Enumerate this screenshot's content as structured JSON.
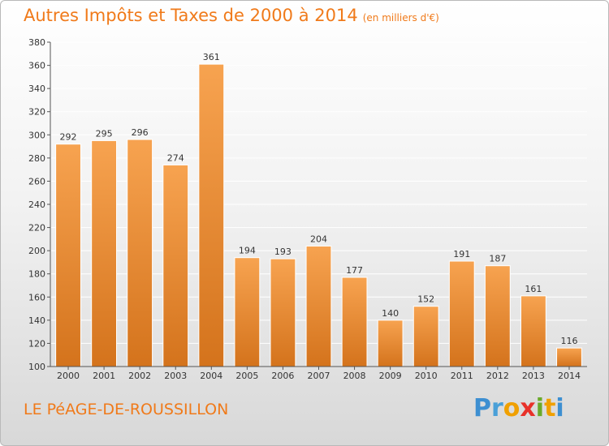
{
  "header": {
    "title": "Autres Impôts et Taxes de 2000 à 2014",
    "unit": "(en milliers d'€)"
  },
  "footer": {
    "commune": "LE PéAGE-DE-ROUSSILLON",
    "logo": [
      "P",
      "r",
      "o",
      "x",
      "i",
      "t",
      "i"
    ]
  },
  "colors": {
    "accent": "#f07a1a",
    "bar_top": "#f7a350",
    "bar_bottom": "#d4731c",
    "grid": "#ffffff",
    "axis_text": "#333333"
  },
  "chart_data": {
    "type": "bar",
    "title": "Autres Impôts et Taxes de 2000 à 2014",
    "subtitle": "(en milliers d'€)",
    "xlabel": "",
    "ylabel": "",
    "categories": [
      "2000",
      "2001",
      "2002",
      "2003",
      "2004",
      "2005",
      "2006",
      "2007",
      "2008",
      "2009",
      "2010",
      "2011",
      "2012",
      "2013",
      "2014"
    ],
    "values": [
      292,
      295,
      296,
      274,
      361,
      194,
      193,
      204,
      177,
      140,
      152,
      191,
      187,
      161,
      116
    ],
    "data_labels": [
      "292",
      "295",
      "296",
      "274",
      "361",
      "194",
      "193",
      "204",
      "177",
      "140",
      "152",
      "191",
      "187",
      "161",
      "116"
    ],
    "ylim": [
      100,
      380
    ],
    "yticks": [
      "100",
      "120",
      "140",
      "160",
      "180",
      "200",
      "220",
      "240",
      "260",
      "280",
      "300",
      "320",
      "340",
      "360",
      "380"
    ],
    "grid": true,
    "legend": "none"
  }
}
